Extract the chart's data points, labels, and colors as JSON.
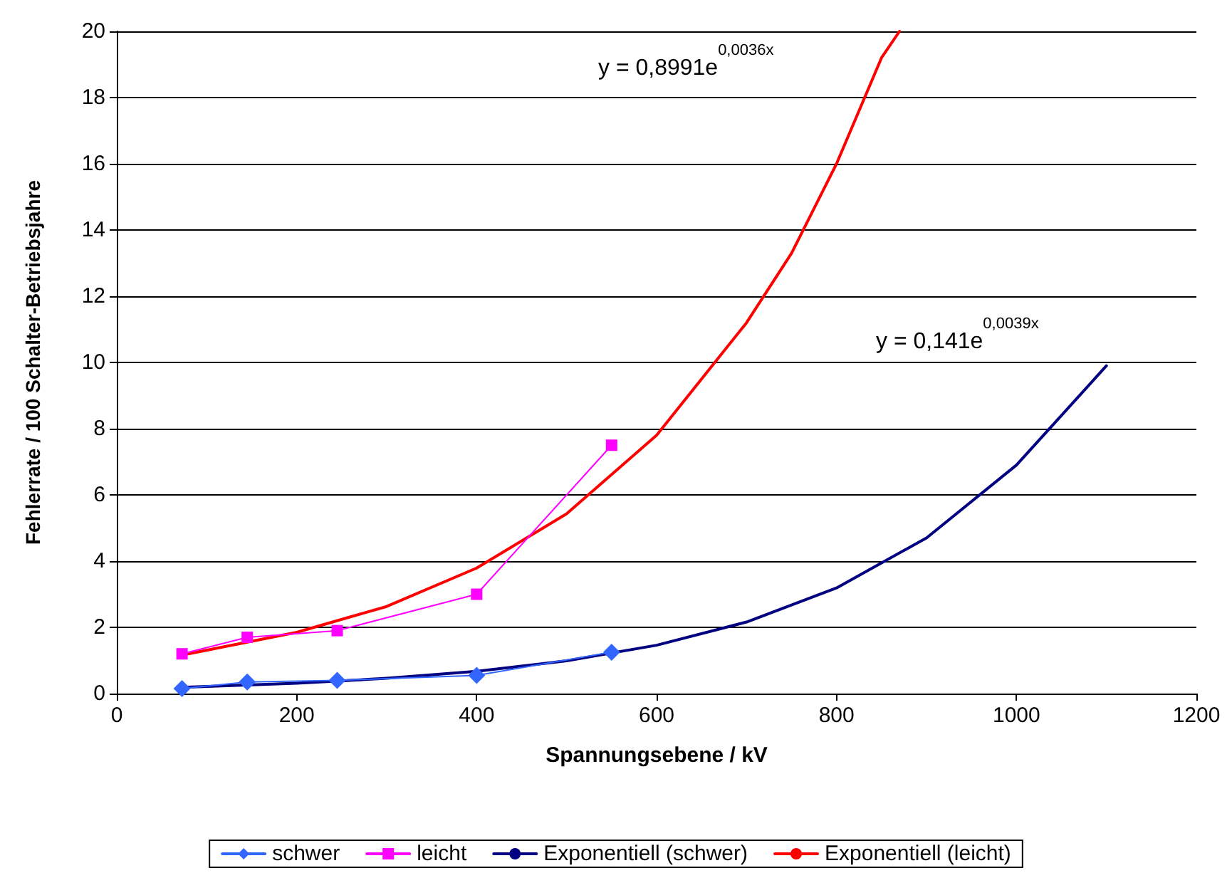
{
  "chart_data": {
    "type": "line",
    "xlabel": "Spannungsebene / kV",
    "ylabel": "Fehlerrate / 100 Schalter-Betriebsjahre",
    "xlim": [
      0,
      1200
    ],
    "xticks": [
      0,
      200,
      400,
      600,
      800,
      1000,
      1200
    ],
    "ylim": [
      0,
      20
    ],
    "yticks": [
      0,
      2,
      4,
      6,
      8,
      10,
      12,
      14,
      16,
      18,
      20
    ],
    "grid": "y",
    "legend": "bottom",
    "annotations": [
      "y = 0,8991e$^{0,0036x}$",
      "y = 0,141e$^{0,0039x}$"
    ],
    "series": [
      {
        "name": "schwer",
        "color": "#3366ff",
        "marker": "diamond",
        "x": [
          72.5,
          145,
          245,
          400,
          550
        ],
        "values": [
          0.15,
          0.35,
          0.4,
          0.55,
          1.25
        ]
      },
      {
        "name": "leicht",
        "color": "#ff00ff",
        "marker": "square",
        "x": [
          72.5,
          145,
          245,
          400,
          550
        ],
        "values": [
          1.2,
          1.7,
          1.9,
          3.0,
          7.5
        ]
      },
      {
        "name": "Exponentiell (schwer)",
        "color": "#000080",
        "marker": "none",
        "x": [
          72.5,
          200,
          300,
          400,
          500,
          600,
          700,
          800,
          900,
          1000,
          1100
        ],
        "values": [
          0.19,
          0.31,
          0.46,
          0.67,
          0.99,
          1.46,
          2.16,
          3.19,
          4.7,
          6.9,
          9.9
        ]
      },
      {
        "name": "Exponentiell (leicht)",
        "color": "#ff0000",
        "marker": "none",
        "x": [
          72.5,
          200,
          300,
          400,
          500,
          600,
          700,
          750,
          800,
          850,
          870
        ],
        "values": [
          1.16,
          1.85,
          2.63,
          3.79,
          5.43,
          7.8,
          11.2,
          13.3,
          16.0,
          19.2,
          20
        ]
      }
    ]
  }
}
